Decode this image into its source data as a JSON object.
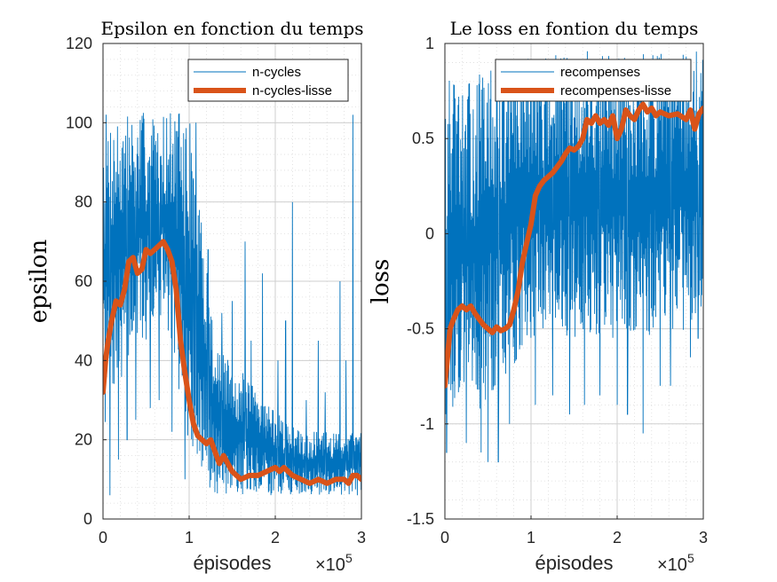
{
  "chart_data": [
    {
      "type": "line",
      "title": "Epsilon en fonction du temps",
      "xlabel": "épisodes",
      "ylabel": "epsilon",
      "x_multiplier": "×10",
      "x_exponent": "5",
      "xlim": [
        0,
        3
      ],
      "ylim": [
        0,
        120
      ],
      "xticks": [
        0,
        1,
        2,
        3
      ],
      "yticks": [
        0,
        20,
        40,
        60,
        80,
        100,
        120
      ],
      "xtick_labels": [
        "0",
        "1",
        "2",
        "3"
      ],
      "ytick_labels": [
        "0",
        "20",
        "40",
        "60",
        "80",
        "100",
        "120"
      ],
      "grid": true,
      "legend": "top-right",
      "series": [
        {
          "name": "n-cycles",
          "color": "#0072BD",
          "kind": "noisy",
          "x": [
            0,
            0.05,
            0.1,
            0.2,
            0.3,
            0.4,
            0.5,
            0.6,
            0.7,
            0.8,
            0.9,
            1.0,
            1.1,
            1.2,
            1.3,
            1.5,
            1.7,
            1.9,
            2.1,
            2.3,
            2.5,
            2.7,
            2.9,
            3.0
          ],
          "low": [
            20,
            25,
            30,
            35,
            40,
            45,
            45,
            50,
            50,
            45,
            30,
            15,
            10,
            8,
            6,
            6,
            6,
            6,
            6,
            6,
            6,
            6,
            6,
            6
          ],
          "high": [
            103,
            103,
            103,
            103,
            103,
            103,
            103,
            103,
            103,
            103,
            103,
            103,
            80,
            70,
            45,
            40,
            35,
            30,
            25,
            22,
            22,
            22,
            22,
            22
          ],
          "spikes": [
            [
              1.05,
              86
            ],
            [
              1.08,
              100
            ],
            [
              1.12,
              78
            ],
            [
              1.22,
              68
            ],
            [
              1.38,
              52
            ],
            [
              1.5,
              55
            ],
            [
              1.65,
              70
            ],
            [
              1.72,
              45
            ],
            [
              1.85,
              62
            ],
            [
              2.03,
              40
            ],
            [
              2.12,
              50
            ],
            [
              2.2,
              80
            ],
            [
              2.36,
              30
            ],
            [
              2.5,
              45
            ],
            [
              2.58,
              32
            ],
            [
              2.75,
              60
            ],
            [
              2.82,
              40
            ],
            [
              2.9,
              102
            ],
            [
              2.96,
              20
            ]
          ],
          "dips": [
            [
              0.08,
              6
            ],
            [
              0.18,
              15
            ],
            [
              0.28,
              20
            ],
            [
              0.38,
              25
            ],
            [
              0.55,
              28
            ],
            [
              0.65,
              30
            ],
            [
              0.8,
              22
            ],
            [
              0.95,
              10
            ]
          ]
        },
        {
          "name": "n-cycles-lisse",
          "color": "#D95319",
          "kind": "smooth",
          "x": [
            0,
            0.03,
            0.06,
            0.1,
            0.15,
            0.2,
            0.25,
            0.3,
            0.35,
            0.4,
            0.45,
            0.5,
            0.55,
            0.6,
            0.65,
            0.7,
            0.75,
            0.8,
            0.85,
            0.9,
            0.95,
            1.0,
            1.05,
            1.1,
            1.15,
            1.2,
            1.25,
            1.3,
            1.35,
            1.4,
            1.45,
            1.5,
            1.55,
            1.6,
            1.7,
            1.8,
            1.9,
            2.0,
            2.05,
            2.1,
            2.15,
            2.2,
            2.3,
            2.4,
            2.5,
            2.6,
            2.7,
            2.8,
            2.85,
            2.9,
            2.95,
            3.0
          ],
          "y": [
            32,
            40,
            45,
            50,
            55,
            54,
            58,
            65,
            66,
            62,
            63,
            68,
            67,
            68,
            69,
            70,
            68,
            65,
            58,
            45,
            37,
            30,
            24,
            21,
            20,
            19,
            20,
            17,
            14,
            16,
            14,
            12,
            11,
            10,
            11,
            11,
            12,
            13,
            12,
            13,
            12,
            11,
            10,
            9,
            10,
            9,
            10,
            10,
            9,
            11,
            11,
            10
          ]
        }
      ]
    },
    {
      "type": "line",
      "title": "Le loss en fontion du temps",
      "xlabel": "épisodes",
      "ylabel": "loss",
      "x_multiplier": "×10",
      "x_exponent": "5",
      "xlim": [
        0,
        3
      ],
      "ylim": [
        -1.5,
        1
      ],
      "xticks": [
        0,
        1,
        2,
        3
      ],
      "yticks": [
        -1.5,
        -1,
        -0.5,
        0,
        0.5,
        1
      ],
      "xtick_labels": [
        "0",
        "1",
        "2",
        "3"
      ],
      "ytick_labels": [
        "-1.5",
        "-1",
        "-0.5",
        "0",
        "0.5",
        "1"
      ],
      "grid": true,
      "legend": "top-right",
      "series": [
        {
          "name": "recompenses",
          "color": "#0072BD",
          "kind": "noisy",
          "x": [
            0,
            0.1,
            0.2,
            0.3,
            0.4,
            0.5,
            0.6,
            0.7,
            0.8,
            0.9,
            1.0,
            1.1,
            1.2,
            1.3,
            1.4,
            1.5,
            1.6,
            1.7,
            1.8,
            1.9,
            2.0,
            2.2,
            2.4,
            2.6,
            2.8,
            3.0
          ],
          "low": [
            -1.1,
            -0.9,
            -0.85,
            -0.9,
            -0.95,
            -0.85,
            -0.85,
            -0.8,
            -0.7,
            -0.6,
            -0.55,
            -0.55,
            -0.55,
            -0.55,
            -0.55,
            -0.55,
            -0.55,
            -0.55,
            -0.55,
            -0.55,
            -0.55,
            -0.55,
            -0.55,
            -0.55,
            -0.5,
            -0.45
          ],
          "high": [
            0.85,
            0.8,
            0.75,
            0.8,
            0.85,
            0.85,
            0.9,
            0.9,
            0.92,
            0.92,
            0.95,
            0.95,
            0.95,
            0.95,
            0.95,
            0.96,
            0.96,
            0.96,
            0.96,
            0.96,
            0.96,
            0.96,
            0.96,
            0.96,
            0.96,
            0.96
          ],
          "spikes": [],
          "dips": [
            [
              0.02,
              -1.15
            ],
            [
              0.25,
              -1.1
            ],
            [
              0.42,
              -1.15
            ],
            [
              0.5,
              -1.2
            ],
            [
              0.62,
              -1.2
            ],
            [
              0.75,
              -1.0
            ],
            [
              1.05,
              -0.9
            ],
            [
              1.25,
              -0.85
            ],
            [
              1.45,
              -0.95
            ],
            [
              1.62,
              -0.9
            ],
            [
              1.8,
              -0.85
            ],
            [
              2.0,
              -0.9
            ],
            [
              2.12,
              -0.95
            ],
            [
              2.3,
              -1.05
            ],
            [
              2.5,
              -0.8
            ],
            [
              2.62,
              -0.8
            ],
            [
              2.85,
              -0.65
            ],
            [
              2.94,
              -0.55
            ]
          ]
        },
        {
          "name": "recompenses-lisse",
          "color": "#D95319",
          "kind": "smooth",
          "x": [
            0,
            0.03,
            0.06,
            0.1,
            0.15,
            0.2,
            0.25,
            0.3,
            0.35,
            0.4,
            0.45,
            0.5,
            0.55,
            0.6,
            0.65,
            0.7,
            0.75,
            0.8,
            0.85,
            0.9,
            0.95,
            1.0,
            1.05,
            1.1,
            1.15,
            1.2,
            1.25,
            1.3,
            1.35,
            1.4,
            1.45,
            1.5,
            1.55,
            1.6,
            1.65,
            1.7,
            1.75,
            1.8,
            1.85,
            1.9,
            1.95,
            2.0,
            2.05,
            2.1,
            2.15,
            2.2,
            2.25,
            2.3,
            2.35,
            2.4,
            2.45,
            2.5,
            2.6,
            2.7,
            2.8,
            2.85,
            2.9,
            2.95,
            3.0
          ],
          "y": [
            -0.8,
            -0.65,
            -0.5,
            -0.45,
            -0.4,
            -0.38,
            -0.4,
            -0.38,
            -0.42,
            -0.45,
            -0.48,
            -0.5,
            -0.52,
            -0.49,
            -0.51,
            -0.5,
            -0.48,
            -0.4,
            -0.3,
            -0.15,
            -0.05,
            0.05,
            0.2,
            0.25,
            0.28,
            0.3,
            0.32,
            0.35,
            0.38,
            0.42,
            0.45,
            0.44,
            0.46,
            0.5,
            0.6,
            0.58,
            0.62,
            0.58,
            0.6,
            0.57,
            0.62,
            0.5,
            0.55,
            0.65,
            0.62,
            0.6,
            0.65,
            0.68,
            0.64,
            0.66,
            0.62,
            0.64,
            0.62,
            0.63,
            0.6,
            0.65,
            0.55,
            0.63,
            0.66
          ]
        }
      ]
    }
  ]
}
